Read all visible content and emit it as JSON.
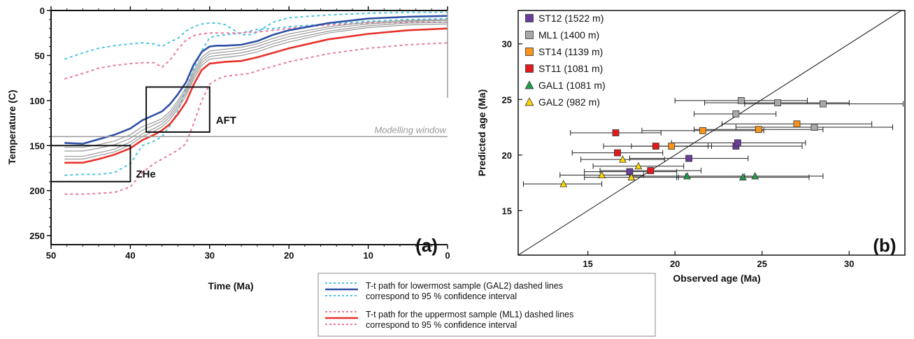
{
  "bottom_legend": {
    "blue_text_line1": "T-t path for lowermost sample (GAL2) dashed lines",
    "blue_text_line2": "correspond to 95 % confidence interval",
    "red_text_line1": "T-t path for the uppermost sample (ML1) dashed lines",
    "red_text_line2": "correspond to 95 % confidence interval",
    "colors": {
      "blue": "#2e4fa3",
      "cyan": "#4ec3e0",
      "red": "#e8312a",
      "pink": "#e87aa3"
    }
  },
  "chart_data": [
    {
      "type": "line",
      "panel_label": "(a)",
      "xlabel": "Time (Ma)",
      "ylabel": "Temperature (C)",
      "xlim": [
        50,
        0
      ],
      "ylim": [
        0,
        260
      ],
      "y_inverted": true,
      "x_ticks": [
        "50",
        "40",
        "30",
        "20",
        "10",
        "0"
      ],
      "y_ticks": [
        "0",
        "50",
        "100",
        "150",
        "200",
        "250"
      ],
      "modelling_window": {
        "temperature": 140,
        "label": "Modelling window"
      },
      "boxes": [
        {
          "label": "ZHe",
          "x_range": [
            50,
            40
          ],
          "t_range": [
            150,
            190
          ]
        },
        {
          "label": "AFT",
          "x_range": [
            38,
            30
          ],
          "t_range": [
            85,
            135
          ]
        }
      ],
      "series": [
        {
          "key": "cyan_upper",
          "color": "#4ec3e0",
          "dashed": true,
          "x": [
            48.3,
            46,
            44,
            42,
            40,
            38.5,
            37,
            36,
            35,
            34,
            33,
            32,
            31,
            30,
            29,
            28,
            26,
            25,
            24,
            22,
            20,
            15,
            10,
            5,
            0
          ],
          "y": [
            54,
            47,
            42,
            39,
            37,
            36,
            37,
            40,
            35,
            31,
            23,
            18,
            15,
            14,
            14,
            16,
            27,
            27,
            24,
            13,
            8,
            5,
            3,
            2,
            2
          ]
        },
        {
          "key": "cyan_lower",
          "color": "#4ec3e0",
          "dashed": true,
          "x": [
            48.3,
            46,
            44,
            42,
            40,
            38.5,
            37,
            36,
            35,
            34,
            33,
            32,
            31,
            30,
            29,
            28,
            26,
            25,
            24,
            22,
            20,
            15,
            10,
            5,
            0
          ],
          "y": [
            183,
            182,
            182,
            180,
            170,
            150,
            145,
            140,
            128,
            112,
            87,
            65,
            45,
            30,
            28,
            27,
            25,
            23,
            21,
            20,
            18,
            15,
            12,
            10,
            9
          ]
        },
        {
          "key": "pink_upper",
          "color": "#e87aa3",
          "dashed": true,
          "x": [
            48.3,
            46,
            44,
            42,
            40,
            38.5,
            37,
            36,
            35,
            34,
            33,
            32,
            31,
            30,
            29,
            28,
            26,
            25,
            24,
            22,
            20,
            15,
            10,
            5,
            0
          ],
          "y": [
            76,
            70,
            64,
            61,
            59,
            58,
            58,
            63,
            55,
            43,
            33,
            28,
            26,
            25,
            25,
            25,
            25,
            24,
            24,
            22,
            20,
            16,
            14,
            13,
            13
          ]
        },
        {
          "key": "pink_lower",
          "color": "#e87aa3",
          "dashed": true,
          "x": [
            48.3,
            46,
            44,
            42,
            40,
            38.5,
            37,
            36,
            35,
            34,
            33,
            32,
            31,
            30,
            29,
            28,
            26,
            25,
            24,
            22,
            20,
            15,
            10,
            5,
            0
          ],
          "y": [
            204,
            204,
            203,
            202,
            196,
            180,
            170,
            165,
            160,
            155,
            148,
            125,
            100,
            82,
            76,
            73,
            71,
            70,
            67,
            62,
            57,
            48,
            42,
            38,
            36
          ]
        },
        {
          "key": "gray_1",
          "color": "#999999",
          "dashed": false,
          "x": [
            48.3,
            46,
            44,
            42,
            40,
            38.5,
            37,
            36,
            35,
            34,
            33,
            32,
            31,
            30,
            29,
            28,
            26,
            25,
            24,
            22,
            20,
            15,
            10,
            5,
            0
          ],
          "y": [
            152,
            152,
            149,
            145,
            138,
            129,
            124,
            120,
            112,
            100,
            86,
            67,
            52,
            45,
            44,
            43,
            41,
            39,
            37,
            31,
            26,
            18,
            13,
            11,
            10
          ]
        },
        {
          "key": "gray_2",
          "color": "#999999",
          "dashed": false,
          "x": [
            48.3,
            46,
            44,
            42,
            40,
            38.5,
            37,
            36,
            35,
            34,
            33,
            32,
            31,
            30,
            29,
            28,
            26,
            25,
            24,
            22,
            20,
            15,
            10,
            5,
            0
          ],
          "y": [
            156,
            156,
            153,
            149,
            142,
            133,
            127,
            123,
            115,
            103,
            89,
            70,
            55,
            48,
            47,
            46,
            44,
            42,
            40,
            34,
            29,
            20,
            15,
            12,
            11
          ]
        },
        {
          "key": "gray_3",
          "color": "#999999",
          "dashed": false,
          "x": [
            48.3,
            46,
            44,
            42,
            40,
            38.5,
            37,
            36,
            35,
            34,
            33,
            32,
            31,
            30,
            29,
            28,
            26,
            25,
            24,
            22,
            20,
            15,
            10,
            5,
            0
          ],
          "y": [
            162,
            162,
            158,
            154,
            146,
            137,
            131,
            126,
            118,
            106,
            92,
            73,
            58,
            51,
            50,
            49,
            47,
            45,
            43,
            37,
            32,
            23,
            17,
            14,
            13
          ]
        },
        {
          "key": "gray_4",
          "color": "#999999",
          "dashed": false,
          "x": [
            48.3,
            46,
            44,
            42,
            40,
            38.5,
            37,
            36,
            35,
            34,
            33,
            32,
            31,
            30,
            29,
            28,
            26,
            25,
            24,
            22,
            20,
            15,
            10,
            5,
            0
          ],
          "y": [
            165,
            165,
            161,
            157,
            149,
            140,
            134,
            129,
            121,
            109,
            95,
            76,
            61,
            54,
            53,
            52,
            50,
            48,
            46,
            40,
            35,
            25,
            19,
            16,
            15
          ]
        },
        {
          "key": "blue_path",
          "color": "#2e4fa3",
          "dashed": false,
          "x": [
            48.3,
            46,
            44,
            42,
            40,
            38.5,
            37,
            36,
            35,
            34,
            33,
            32,
            31,
            30,
            29,
            28,
            26,
            25,
            24,
            22,
            20,
            15,
            10,
            5,
            0
          ],
          "y": [
            147,
            148,
            143,
            138,
            131,
            122,
            116,
            112,
            104,
            93,
            80,
            60,
            46,
            40,
            39,
            39,
            38,
            36,
            34,
            27,
            22,
            14,
            9,
            7,
            6
          ]
        },
        {
          "key": "red_path",
          "color": "#e8312a",
          "dashed": false,
          "x": [
            48.3,
            46,
            44,
            42,
            40,
            38.5,
            37,
            36,
            35,
            34,
            33,
            32,
            31,
            30,
            29,
            28,
            26,
            25,
            24,
            22,
            20,
            15,
            10,
            5,
            0
          ],
          "y": [
            169,
            169,
            165,
            160,
            153,
            144,
            138,
            133,
            126,
            115,
            102,
            82,
            66,
            59,
            58,
            57,
            56,
            54,
            52,
            47,
            42,
            32,
            26,
            22,
            20
          ]
        }
      ]
    },
    {
      "type": "scatter",
      "panel_label": "(b)",
      "xlabel": "Observed age (Ma)",
      "ylabel": "Predicted age (Ma)",
      "xlim": [
        11,
        33.2
      ],
      "ylim": [
        11,
        33
      ],
      "x_ticks": [
        15,
        20,
        25,
        30
      ],
      "y_ticks": [
        15,
        20,
        25,
        30
      ],
      "reference_line": "1:1",
      "legend_position": "top-left",
      "series": [
        {
          "name": "ST12 (1522 m)",
          "marker": "square",
          "color": "#6a3d9a",
          "points": [
            {
              "x": 23.5,
              "y": 20.8,
              "xerr": [
                19.7,
                27.3
              ]
            },
            {
              "x": 23.6,
              "y": 21.1,
              "xerr": [
                19.8,
                27.5
              ]
            },
            {
              "x": 20.8,
              "y": 19.7,
              "xerr": [
                17.4,
                24.2
              ]
            },
            {
              "x": 17.4,
              "y": 18.5,
              "xerr": [
                14.8,
                20.1
              ]
            }
          ]
        },
        {
          "name": "ML1 (1400 m)",
          "marker": "square",
          "color": "#a8a8a8",
          "points": [
            {
              "x": 23.8,
              "y": 24.9,
              "xerr": [
                20.0,
                27.6
              ]
            },
            {
              "x": 25.9,
              "y": 24.7,
              "xerr": [
                21.7,
                30.0
              ]
            },
            {
              "x": 28.5,
              "y": 24.6,
              "xerr": [
                24.0,
                33.1
              ]
            },
            {
              "x": 23.5,
              "y": 23.7,
              "xerr": [
                21.1,
                25.8
              ]
            },
            {
              "x": 28.0,
              "y": 22.5,
              "xerr": [
                23.5,
                32.5
              ]
            }
          ]
        },
        {
          "name": "ST14 (1139 m)",
          "marker": "square",
          "color": "#f7941d",
          "points": [
            {
              "x": 27.0,
              "y": 22.8,
              "xerr": [
                22.7,
                31.3
              ]
            },
            {
              "x": 24.8,
              "y": 22.3,
              "xerr": [
                21.1,
                28.5
              ]
            },
            {
              "x": 21.6,
              "y": 22.2,
              "xerr": [
                18.1,
                25.1
              ]
            },
            {
              "x": 19.8,
              "y": 20.8,
              "xerr": [
                17.5,
                22.1
              ]
            }
          ]
        },
        {
          "name": "ST11 (1081 m)",
          "marker": "square",
          "color": "#e31a1c",
          "points": [
            {
              "x": 16.6,
              "y": 22.0,
              "xerr": [
                14.0,
                19.2
              ]
            },
            {
              "x": 18.9,
              "y": 20.8,
              "xerr": [
                15.9,
                21.9
              ]
            },
            {
              "x": 16.7,
              "y": 20.2,
              "xerr": [
                14.1,
                19.3
              ]
            },
            {
              "x": 18.6,
              "y": 18.6,
              "xerr": [
                15.7,
                21.5
              ]
            }
          ]
        },
        {
          "name": "GAL1 (1081 m)",
          "marker": "triangle",
          "color": "#1f9e4a",
          "points": [
            {
              "x": 24.6,
              "y": 18.1,
              "xerr": [
                20.6,
                28.5
              ]
            },
            {
              "x": 23.9,
              "y": 18.0,
              "xerr": [
                20.1,
                27.7
              ]
            },
            {
              "x": 20.7,
              "y": 18.1,
              "xerr": [
                17.4,
                24.0
              ]
            }
          ]
        },
        {
          "name": "GAL2 (982 m)",
          "marker": "triangle",
          "color": "#ffd700",
          "points": [
            {
              "x": 17.0,
              "y": 19.6,
              "xerr": [
                14.6,
                19.4
              ]
            },
            {
              "x": 17.9,
              "y": 19.0,
              "xerr": [
                15.3,
                20.5
              ]
            },
            {
              "x": 15.8,
              "y": 18.2,
              "xerr": [
                13.4,
                18.2
              ]
            },
            {
              "x": 17.5,
              "y": 18.0,
              "xerr": [
                14.8,
                20.2
              ]
            },
            {
              "x": 13.6,
              "y": 17.4,
              "xerr": [
                11.3,
                15.8
              ]
            }
          ]
        }
      ]
    }
  ]
}
